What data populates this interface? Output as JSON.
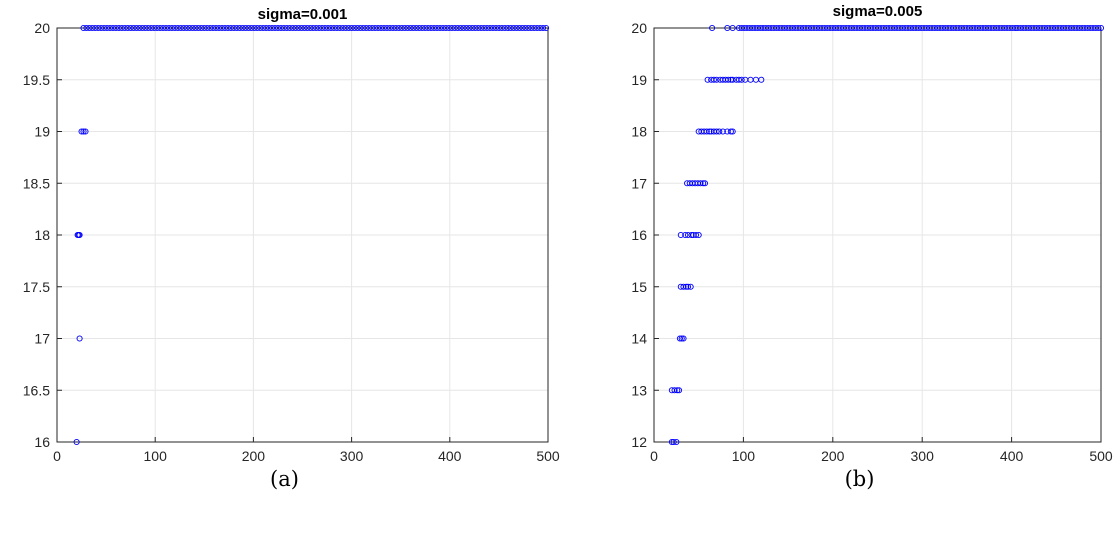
{
  "chart_data": [
    {
      "type": "scatter",
      "title": "sigma=0.001",
      "caption": "(a)",
      "xlabel": "",
      "ylabel": "",
      "xlim": [
        0,
        500
      ],
      "ylim": [
        16,
        20
      ],
      "xticks": [
        "0",
        "100",
        "200",
        "300",
        "400",
        "500"
      ],
      "yticks": [
        "16",
        "16.5",
        "17",
        "17.5",
        "18",
        "18.5",
        "19",
        "19.5",
        "20"
      ],
      "grid": true,
      "marker_color": "#0000ff",
      "series": [
        {
          "points": [
            [
              20,
              16
            ],
            [
              23,
              17
            ],
            [
              21,
              18
            ],
            [
              22,
              18
            ],
            [
              23,
              18
            ],
            [
              25,
              19
            ],
            [
              27,
              19
            ],
            [
              29,
              19
            ],
            {
              "x_from": 27,
              "x_to": 500,
              "step": 3,
              "y": 20
            }
          ]
        }
      ]
    },
    {
      "type": "scatter",
      "title": "sigma=0.005",
      "caption": "(b)",
      "xlabel": "",
      "ylabel": "",
      "xlim": [
        0,
        500
      ],
      "ylim": [
        12,
        20
      ],
      "xticks": [
        "0",
        "100",
        "200",
        "300",
        "400",
        "500"
      ],
      "yticks": [
        "12",
        "13",
        "14",
        "15",
        "16",
        "17",
        "18",
        "19",
        "20"
      ],
      "grid": true,
      "marker_color": "#0000ff",
      "series": [
        {
          "points": [
            [
              20,
              12
            ],
            [
              22,
              12
            ],
            [
              25,
              12
            ],
            [
              20,
              13
            ],
            [
              23,
              13
            ],
            [
              26,
              13
            ],
            [
              28,
              13
            ],
            [
              29,
              14
            ],
            [
              31,
              14
            ],
            [
              33,
              14
            ],
            [
              30,
              15
            ],
            [
              33,
              15
            ],
            [
              36,
              15
            ],
            [
              38,
              15
            ],
            [
              41,
              15
            ],
            [
              30,
              16
            ],
            [
              35,
              16
            ],
            [
              38,
              16
            ],
            [
              42,
              16
            ],
            [
              44,
              16
            ],
            [
              47,
              16
            ],
            [
              50,
              16
            ],
            [
              37,
              17
            ],
            [
              40,
              17
            ],
            [
              43,
              17
            ],
            [
              46,
              17
            ],
            [
              49,
              17
            ],
            [
              52,
              17
            ],
            [
              55,
              17
            ],
            [
              57,
              17
            ],
            [
              50,
              18
            ],
            [
              53,
              18
            ],
            [
              56,
              18
            ],
            [
              59,
              18
            ],
            [
              62,
              18
            ],
            [
              64,
              18
            ],
            [
              67,
              18
            ],
            [
              70,
              18
            ],
            [
              73,
              18
            ],
            [
              77,
              18
            ],
            [
              82,
              18
            ],
            [
              86,
              18
            ],
            [
              88,
              18
            ],
            [
              60,
              19
            ],
            [
              64,
              19
            ],
            [
              67,
              19
            ],
            [
              70,
              19
            ],
            [
              74,
              19
            ],
            [
              77,
              19
            ],
            [
              80,
              19
            ],
            [
              83,
              19
            ],
            [
              86,
              19
            ],
            [
              88,
              19
            ],
            [
              92,
              19
            ],
            [
              95,
              19
            ],
            [
              98,
              19
            ],
            [
              102,
              19
            ],
            [
              108,
              19
            ],
            [
              114,
              19
            ],
            [
              120,
              19
            ],
            [
              65,
              20
            ],
            [
              82,
              20
            ],
            [
              88,
              20
            ],
            [
              95,
              20
            ],
            {
              "x_from": 98,
              "x_to": 500,
              "step": 3,
              "y": 20
            }
          ]
        }
      ]
    }
  ]
}
